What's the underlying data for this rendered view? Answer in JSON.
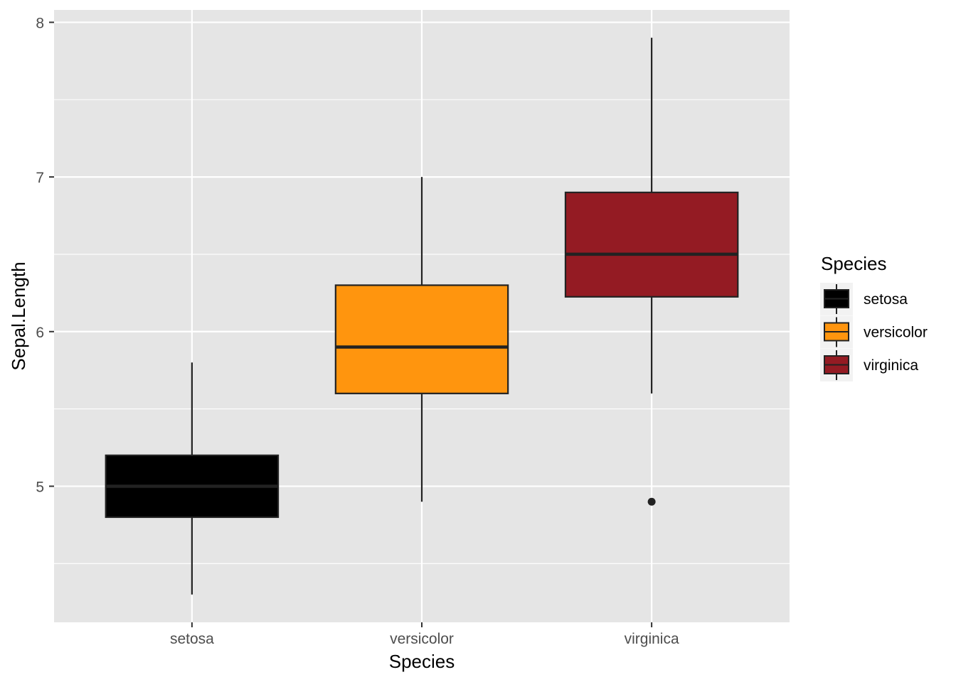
{
  "chart_data": {
    "type": "box",
    "title": "",
    "xlabel": "Species",
    "ylabel": "Sepal.Length",
    "categories": [
      "setosa",
      "versicolor",
      "virginica"
    ],
    "ylim": [
      4.12,
      8.08
    ],
    "yticks": [
      5,
      6,
      7,
      8
    ],
    "yticklabels": [
      "5",
      "6",
      "7",
      "8"
    ],
    "grid": true,
    "series": [
      {
        "name": "setosa",
        "color": "#000000",
        "whisker_low": 4.3,
        "q1": 4.8,
        "median": 5.0,
        "q3": 5.2,
        "whisker_high": 5.8,
        "outliers": []
      },
      {
        "name": "versicolor",
        "color": "#FF950E",
        "whisker_low": 4.9,
        "q1": 5.6,
        "median": 5.9,
        "q3": 6.3,
        "whisker_high": 7.0,
        "outliers": []
      },
      {
        "name": "virginica",
        "color": "#941B23",
        "whisker_low": 5.6,
        "q1": 6.225,
        "median": 6.5,
        "q3": 6.9,
        "whisker_high": 7.9,
        "outliers": [
          4.9
        ]
      }
    ],
    "legend": {
      "title": "Species",
      "placement": "right",
      "entries": [
        "setosa",
        "versicolor",
        "virginica"
      ]
    },
    "colors": {
      "panel": "#E5E5E5",
      "grid": "#FFFFFF",
      "outline": "#222222"
    }
  }
}
